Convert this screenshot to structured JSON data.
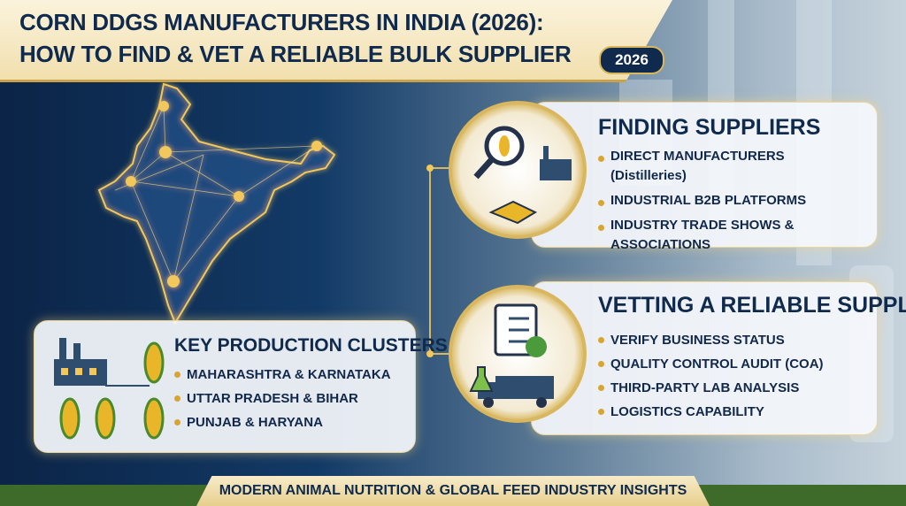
{
  "header": {
    "title_line1": "CORN DDGS MANUFACTURERS IN INDIA (2026):",
    "title_line2": "HOW TO FIND & VET A RELIABLE BULK SUPPLIER",
    "badge": "2026"
  },
  "clusters": {
    "title": "KEY PRODUCTION CLUSTERS",
    "items": [
      "MAHARASHTRA & KARNATAKA",
      "UTTAR PRADESH & BIHAR",
      "PUNJAB & HARYANA"
    ]
  },
  "finding": {
    "title": "FINDING SUPPLIERS",
    "items": [
      "DIRECT MANUFACTURERS (Distilleries)",
      "INDUSTRIAL B2B PLATFORMS",
      "INDUSTRY TRADE SHOWS & ASSOCIATIONS"
    ]
  },
  "vetting": {
    "title": "VETTING A RELIABLE SUPPLIER",
    "items": [
      "VERIFY BUSINESS STATUS",
      "QUALITY CONTROL AUDIT (COA)",
      "THIRD-PARTY LAB ANALYSIS",
      "LOGISTICS CAPABILITY"
    ]
  },
  "footer": {
    "text": "MODERN ANIMAL NUTRITION & GLOBAL FEED INDUSTRY INSIGHTS"
  }
}
